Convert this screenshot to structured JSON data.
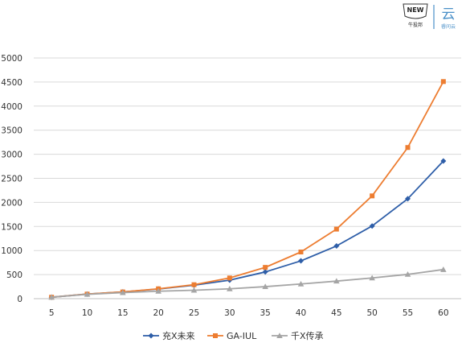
{
  "logo": {
    "badge_text": "NEW",
    "badge_sub": "牛投邦",
    "brand_glyph": "云",
    "brand_sub": "睿问云"
  },
  "chart_data": {
    "type": "line",
    "x": [
      5,
      10,
      15,
      20,
      25,
      30,
      35,
      40,
      45,
      50,
      55,
      60
    ],
    "series": [
      {
        "name": "充X未来",
        "color": "#2e5ea8",
        "marker": "diamond",
        "values": [
          30,
          95,
          140,
          200,
          280,
          385,
          555,
          785,
          1095,
          1510,
          2075,
          2860
        ]
      },
      {
        "name": "GA-IUL",
        "color": "#ed7d31",
        "marker": "square",
        "values": [
          30,
          95,
          140,
          205,
          290,
          430,
          650,
          970,
          1445,
          2135,
          3140,
          4510
        ]
      },
      {
        "name": "千X传承",
        "color": "#a5a5a5",
        "marker": "triangle",
        "values": [
          30,
          90,
          125,
          155,
          175,
          205,
          250,
          305,
          365,
          430,
          505,
          605
        ]
      }
    ],
    "ylim": [
      0,
      5000
    ],
    "yticks": [
      0,
      500,
      1000,
      1500,
      2000,
      2500,
      3000,
      3500,
      4000,
      4500,
      5000
    ],
    "grid": true,
    "legend": "bottom"
  }
}
